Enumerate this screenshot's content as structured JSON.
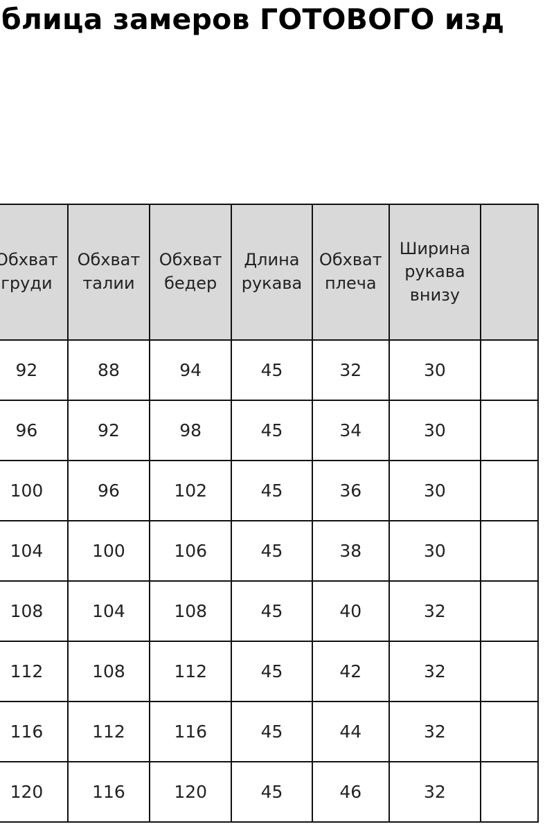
{
  "title": "блица замеров ГОТОВОГО изд",
  "table": {
    "header_bg": "#d9d9d9",
    "headers": [
      "Обхват груди",
      "Обхват талии",
      "Обхват бедер",
      "Длина рукава",
      "Обхват плеча",
      "Ширина рукава внизу",
      ""
    ],
    "rows": [
      [
        "92",
        "88",
        "94",
        "45",
        "32",
        "30",
        ""
      ],
      [
        "96",
        "92",
        "98",
        "45",
        "34",
        "30",
        ""
      ],
      [
        "100",
        "96",
        "102",
        "45",
        "36",
        "30",
        ""
      ],
      [
        "104",
        "100",
        "106",
        "45",
        "38",
        "30",
        ""
      ],
      [
        "108",
        "104",
        "108",
        "45",
        "40",
        "32",
        ""
      ],
      [
        "112",
        "108",
        "112",
        "45",
        "42",
        "32",
        ""
      ],
      [
        "116",
        "112",
        "116",
        "45",
        "44",
        "32",
        ""
      ],
      [
        "120",
        "116",
        "120",
        "45",
        "46",
        "32",
        ""
      ]
    ]
  }
}
